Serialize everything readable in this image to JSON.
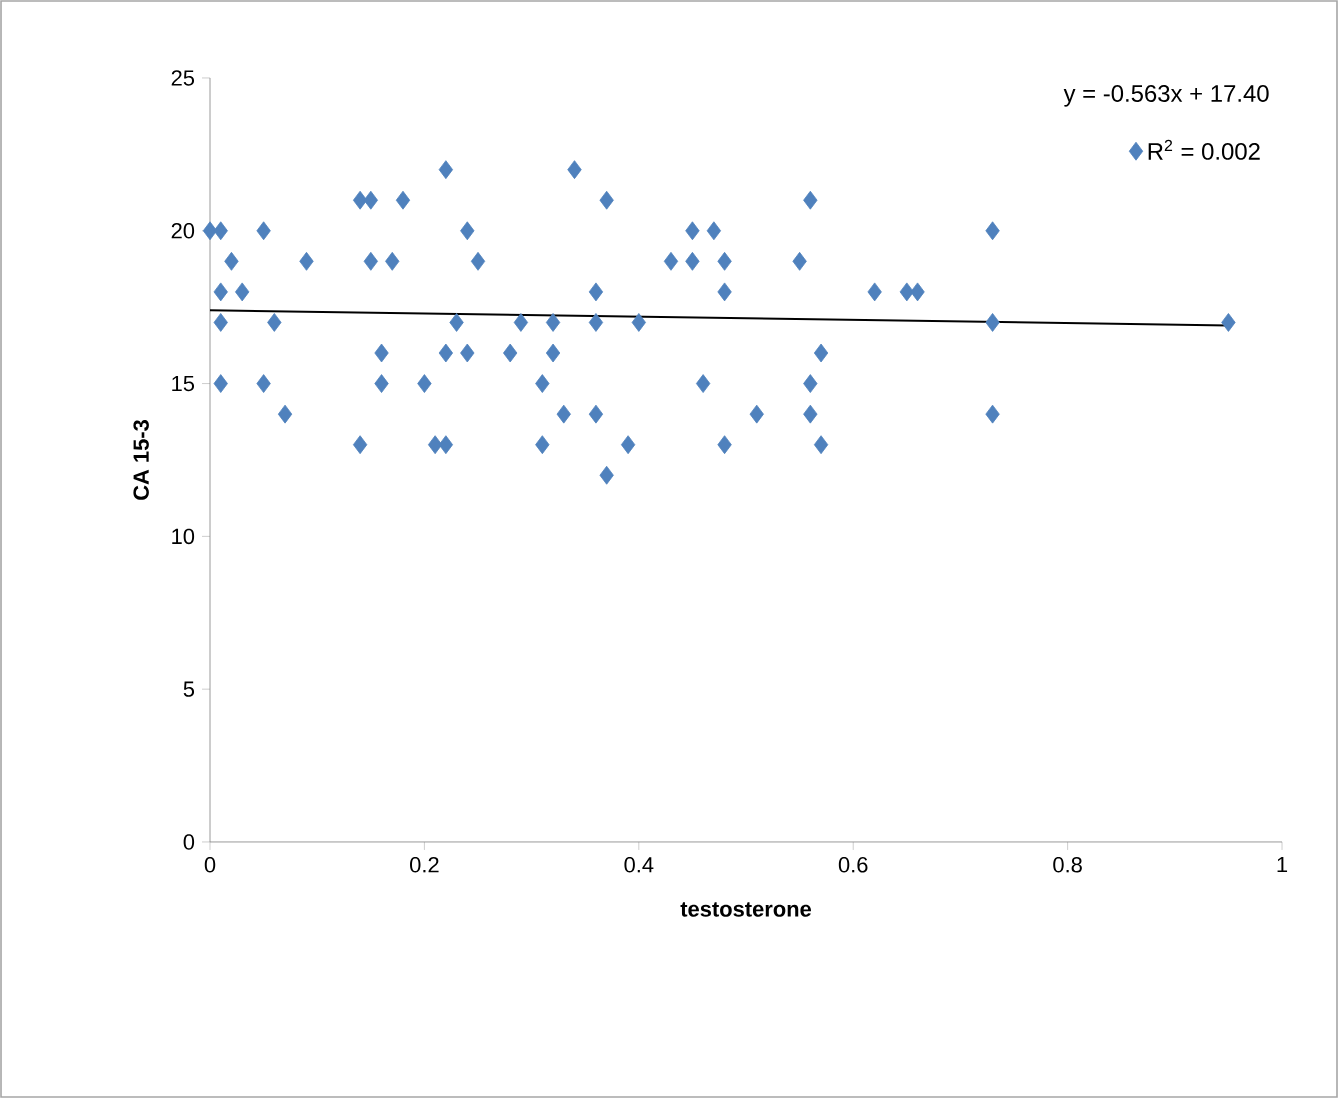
{
  "chart_data": {
    "type": "scatter",
    "xlabel": "testosterone",
    "ylabel": "CA 15-3",
    "xlim": [
      0,
      1
    ],
    "ylim": [
      0,
      25
    ],
    "xticks": [
      0,
      0.2,
      0.4,
      0.6,
      0.8,
      1
    ],
    "yticks": [
      0,
      5,
      10,
      15,
      20,
      25
    ],
    "grid": false,
    "legend": "top right",
    "marker": "diamond",
    "annotations": [
      "y = -0.563x + 17.40"
    ],
    "series": [
      {
        "name": "R$^{2}$ = 0.002",
        "color": "#4f81bd",
        "x": [
          0.0,
          0.01,
          0.05,
          0.24,
          0.45,
          0.47,
          0.73,
          0.22,
          0.34,
          0.14,
          0.15,
          0.18,
          0.37,
          0.56,
          0.02,
          0.09,
          0.15,
          0.17,
          0.25,
          0.43,
          0.45,
          0.48,
          0.55,
          0.01,
          0.03,
          0.36,
          0.48,
          0.62,
          0.65,
          0.66,
          0.01,
          0.06,
          0.23,
          0.29,
          0.32,
          0.36,
          0.4,
          0.73,
          0.95,
          0.16,
          0.22,
          0.24,
          0.28,
          0.32,
          0.57,
          0.01,
          0.05,
          0.16,
          0.2,
          0.31,
          0.46,
          0.56,
          0.07,
          0.33,
          0.36,
          0.51,
          0.56,
          0.73,
          0.14,
          0.21,
          0.22,
          0.31,
          0.39,
          0.48,
          0.57,
          0.37
        ],
        "values": [
          20,
          20,
          20,
          20,
          20,
          20,
          20,
          22,
          22,
          21,
          21,
          21,
          21,
          21,
          19,
          19,
          19,
          19,
          19,
          19,
          19,
          19,
          19,
          18,
          18,
          18,
          18,
          18,
          18,
          18,
          17,
          17,
          17,
          17,
          17,
          17,
          17,
          17,
          17,
          16,
          16,
          16,
          16,
          16,
          16,
          15,
          15,
          15,
          15,
          15,
          15,
          15,
          14,
          14,
          14,
          14,
          14,
          14,
          13,
          13,
          13,
          13,
          13,
          13,
          13,
          12
        ]
      },
      {
        "type": "line",
        "color": "#000000",
        "x": [
          0,
          0.95
        ],
        "values": [
          17.4,
          16.9
        ],
        "marker": "none"
      }
    ]
  }
}
